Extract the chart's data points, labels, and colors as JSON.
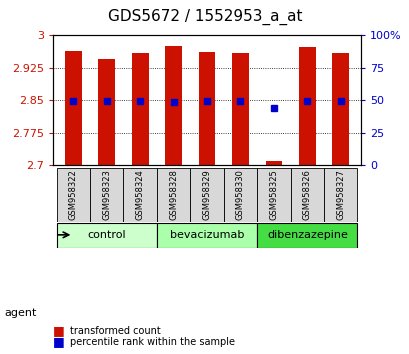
{
  "title": "GDS5672 / 1552953_a_at",
  "samples": [
    "GSM958322",
    "GSM958323",
    "GSM958324",
    "GSM958328",
    "GSM958329",
    "GSM958330",
    "GSM958325",
    "GSM958326",
    "GSM958327"
  ],
  "red_values": [
    2.965,
    2.945,
    2.96,
    2.975,
    2.962,
    2.96,
    2.71,
    2.972,
    2.96
  ],
  "blue_values": [
    2.848,
    2.848,
    2.848,
    2.846,
    2.848,
    2.848,
    2.832,
    2.848,
    2.848
  ],
  "y_min": 2.7,
  "y_max": 3.0,
  "y_ticks": [
    2.7,
    2.775,
    2.85,
    2.925,
    3.0
  ],
  "y_tick_labels": [
    "2.7",
    "2.775",
    "2.85",
    "2.925",
    "3"
  ],
  "y2_ticks": [
    0,
    25,
    50,
    75,
    100
  ],
  "y2_tick_labels": [
    "0",
    "25",
    "50",
    "75",
    "100%"
  ],
  "groups": [
    {
      "label": "control",
      "indices": [
        0,
        1,
        2
      ],
      "color": "#ccffcc"
    },
    {
      "label": "bevacizumab",
      "indices": [
        3,
        4,
        5
      ],
      "color": "#aaffaa"
    },
    {
      "label": "dibenzazepine",
      "indices": [
        6,
        7,
        8
      ],
      "color": "#44dd44"
    }
  ],
  "bar_color": "#cc1100",
  "dot_color": "#0000cc",
  "bar_width": 0.5,
  "left_tick_color": "#cc1100",
  "right_tick_color": "#0000cc",
  "legend_red": "transformed count",
  "legend_blue": "percentile rank within the sample",
  "agent_label": "agent",
  "grid_linestyle": ":"
}
